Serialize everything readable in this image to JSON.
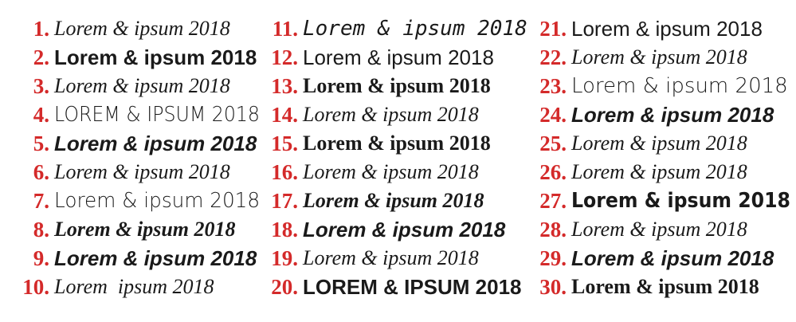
{
  "accent_color": "#d42a2a",
  "columns": [
    {
      "items": [
        {
          "num": "1.",
          "text": "Lorem & ipsum 2018"
        },
        {
          "num": "2.",
          "text": "Lorem & ipsum 2018"
        },
        {
          "num": "3.",
          "text": "Lorem & ipsum 2018"
        },
        {
          "num": "4.",
          "text": "LOREM & IPSUM 2018"
        },
        {
          "num": "5.",
          "text": "Lorem & ipsum 2018"
        },
        {
          "num": "6.",
          "text": "Lorem & ipsum 2018"
        },
        {
          "num": "7.",
          "text": "Lorem & ipsum 2018"
        },
        {
          "num": "8.",
          "text": "Lorem & ipsum 2018"
        },
        {
          "num": "9.",
          "text": "Lorem & ipsum 2018"
        },
        {
          "num": "10.",
          "text": "Lorem  ipsum 2018"
        }
      ]
    },
    {
      "items": [
        {
          "num": "11.",
          "text": "Lorem & ipsum 2018"
        },
        {
          "num": "12.",
          "text": "Lorem & ipsum 2018"
        },
        {
          "num": "13.",
          "text": "Lorem & ipsum 2018"
        },
        {
          "num": "14.",
          "text": "Lorem & ipsum 2018"
        },
        {
          "num": "15.",
          "text": "Lorem & ipsum 2018"
        },
        {
          "num": "16.",
          "text": "Lorem & ipsum 2018"
        },
        {
          "num": "17.",
          "text": "Lorem & ipsum 2018"
        },
        {
          "num": "18.",
          "text": "Lorem & ipsum 2018"
        },
        {
          "num": "19.",
          "text": "Lorem & ipsum 2018"
        },
        {
          "num": "20.",
          "text": "LOREM & IPSUM 2018"
        }
      ]
    },
    {
      "items": [
        {
          "num": "21.",
          "text": "Lorem & ipsum 2018"
        },
        {
          "num": "22.",
          "text": "Lorem & ipsum 2018"
        },
        {
          "num": "23.",
          "text": "Lorem & ipsum 2018"
        },
        {
          "num": "24.",
          "text": "Lorem & ipsum 2018"
        },
        {
          "num": "25.",
          "text": "Lorem & ipsum 2018"
        },
        {
          "num": "26.",
          "text": "Lorem & ipsum 2018"
        },
        {
          "num": "27.",
          "text": "Lorem & ipsum 2018"
        },
        {
          "num": "28.",
          "text": "Lorem & ipsum 2018"
        },
        {
          "num": "29.",
          "text": "Lorem & ipsum 2018"
        },
        {
          "num": "30.",
          "text": "Lorem & ipsum 2018"
        }
      ]
    }
  ]
}
